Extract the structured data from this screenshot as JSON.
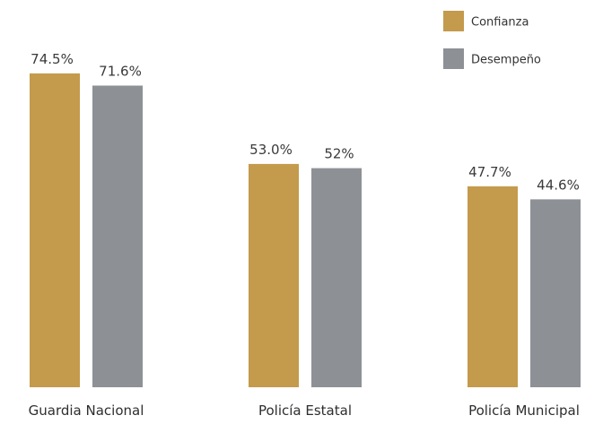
{
  "chart_data": {
    "type": "bar",
    "categories": [
      "Guardia Nacional",
      "Policía Estatal",
      "Policía Municipal"
    ],
    "series": [
      {
        "name": "Confianza",
        "values": [
          74.5,
          53.0,
          47.7
        ],
        "labels": [
          "74.5%",
          "53.0%",
          "47.7%"
        ],
        "color": "#C49A4C"
      },
      {
        "name": "Desempeño",
        "values": [
          71.6,
          52,
          44.6
        ],
        "labels": [
          "71.6%",
          "52%",
          "44.6%"
        ],
        "color": "#8D9196"
      }
    ],
    "ylim": [
      0,
      80
    ],
    "grid": false,
    "legend": "top-right"
  }
}
